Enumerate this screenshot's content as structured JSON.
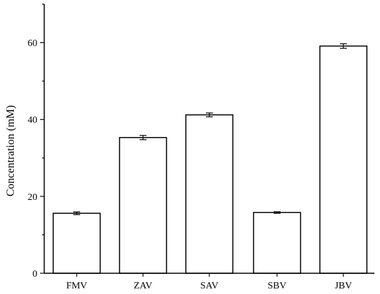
{
  "chart_data": {
    "type": "bar",
    "title": "",
    "xlabel": "",
    "ylabel": "Concentration (mM)",
    "categories": [
      "FMV",
      "ZAV",
      "SAV",
      "SBV",
      "JBV"
    ],
    "values": [
      15.6,
      35.3,
      41.2,
      15.8,
      59.1
    ],
    "errors": [
      0.35,
      0.55,
      0.5,
      0.2,
      0.6
    ],
    "ylim": [
      0,
      70
    ],
    "yticks": [
      0,
      20,
      40,
      60
    ],
    "grid": false,
    "bar_fill": "#ffffff",
    "bar_stroke": "#000000"
  }
}
